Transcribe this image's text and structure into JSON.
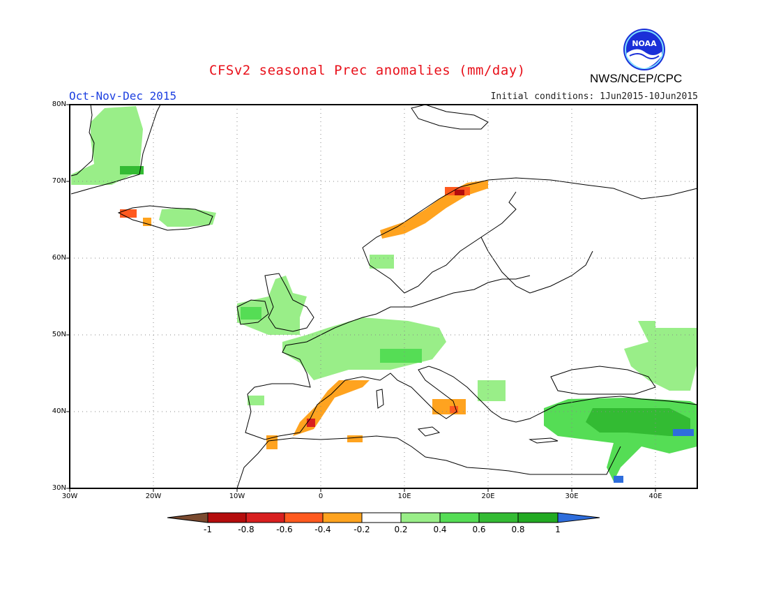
{
  "header": {
    "title": "CFSv2 seasonal Prec anomalies (mm/day)",
    "period": "Oct-Nov-Dec 2015",
    "initial_conditions": "Initial conditions: 1Jun2015-10Jun2015",
    "agency": "NWS/NCEP/CPC",
    "logo_text": "NOAA"
  },
  "map": {
    "projection": "lat-lon",
    "lon_range": [
      -30,
      45
    ],
    "lat_range": [
      30,
      80
    ],
    "grid": "dotted",
    "lat_labels": [
      "30N",
      "40N",
      "50N",
      "60N",
      "70N",
      "80N"
    ],
    "lon_labels": [
      "30W",
      "20W",
      "10W",
      "0",
      "10E",
      "20E",
      "30E",
      "40E"
    ]
  },
  "colorbar": {
    "labels": [
      "-1",
      "-0.8",
      "-0.6",
      "-0.4",
      "-0.2",
      "0.2",
      "0.4",
      "0.6",
      "0.8",
      "1"
    ],
    "colors": [
      "#7a4a2f",
      "#b40c0c",
      "#d81f1f",
      "#ff5a1f",
      "#ffa31f",
      "#ffffff",
      "#99ee88",
      "#55dd55",
      "#33bb33",
      "#22aa22",
      "#2e6ddc"
    ]
  },
  "anomaly_regions": [
    {
      "region": "Greenland east coast",
      "sign": "positive"
    },
    {
      "region": "Iceland",
      "sign": "positive"
    },
    {
      "region": "Norway coast",
      "sign": "negative"
    },
    {
      "region": "British Isles",
      "sign": "positive"
    },
    {
      "region": "France and Central Europe",
      "sign": "positive"
    },
    {
      "region": "Eastern Spain",
      "sign": "negative"
    },
    {
      "region": "Southern Italy",
      "sign": "negative"
    },
    {
      "region": "Turkey and Middle East",
      "sign": "positive"
    },
    {
      "region": "Western Russia",
      "sign": "positive"
    }
  ]
}
